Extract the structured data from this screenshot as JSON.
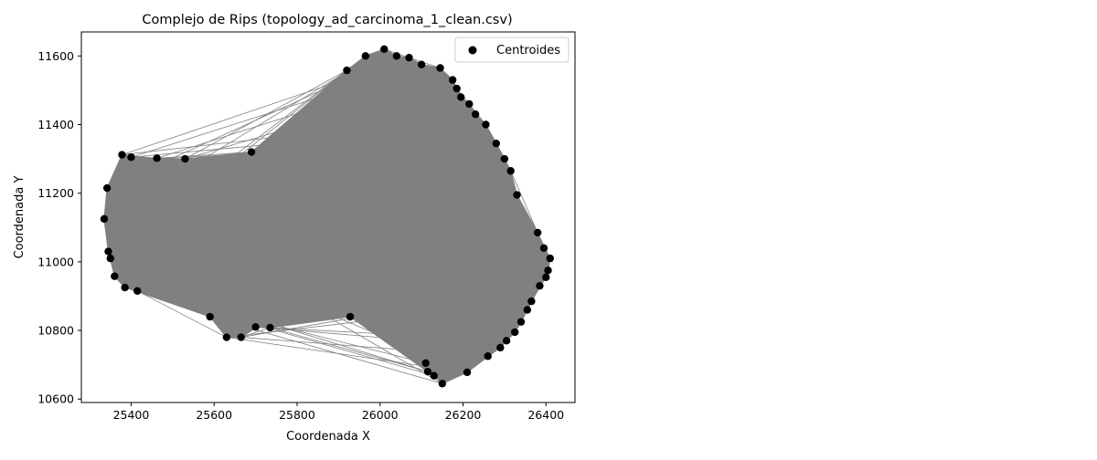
{
  "chart_data": {
    "type": "scatter",
    "title": "Complejo de Rips (topology_ad_carcinoma_1_clean.csv)",
    "xlabel": "Coordenada X",
    "ylabel": "Coordenada Y",
    "xlim": [
      25280,
      26470
    ],
    "ylim": [
      10590,
      11670
    ],
    "xticks": [
      25400,
      25600,
      25800,
      26000,
      26200,
      26400
    ],
    "yticks": [
      10600,
      10800,
      11000,
      11200,
      11400,
      11600
    ],
    "grid": false,
    "legend": {
      "placement": "upper right",
      "entries": [
        {
          "label": "Centroides",
          "marker": "circle",
          "color": "#000000"
        }
      ]
    },
    "edge_color": "#808080",
    "fill_color": "#808080",
    "point_color": "#000000",
    "series": [
      {
        "name": "Centroides",
        "points": [
          [
            25335,
            11125
          ],
          [
            25342,
            11215
          ],
          [
            25345,
            11030
          ],
          [
            25350,
            11010
          ],
          [
            25360,
            10958
          ],
          [
            25378,
            11312
          ],
          [
            25385,
            10925
          ],
          [
            25400,
            11305
          ],
          [
            25415,
            10915
          ],
          [
            25462,
            11302
          ],
          [
            25530,
            11300
          ],
          [
            25590,
            10840
          ],
          [
            25630,
            10780
          ],
          [
            25665,
            10780
          ],
          [
            25690,
            11320
          ],
          [
            25700,
            10810
          ],
          [
            25735,
            10808
          ],
          [
            25920,
            11558
          ],
          [
            25928,
            10840
          ],
          [
            25965,
            11600
          ],
          [
            26010,
            11620
          ],
          [
            26040,
            11600
          ],
          [
            26070,
            11595
          ],
          [
            26100,
            11575
          ],
          [
            26110,
            10705
          ],
          [
            26115,
            10680
          ],
          [
            26130,
            10668
          ],
          [
            26145,
            11565
          ],
          [
            26150,
            10645
          ],
          [
            26175,
            11530
          ],
          [
            26185,
            11505
          ],
          [
            26195,
            11480
          ],
          [
            26210,
            10678
          ],
          [
            26215,
            11460
          ],
          [
            26230,
            11430
          ],
          [
            26255,
            11400
          ],
          [
            26260,
            10725
          ],
          [
            26280,
            11345
          ],
          [
            26290,
            10750
          ],
          [
            26300,
            11300
          ],
          [
            26305,
            10770
          ],
          [
            26315,
            11265
          ],
          [
            26325,
            10795
          ],
          [
            26330,
            11195
          ],
          [
            26340,
            10825
          ],
          [
            26355,
            10860
          ],
          [
            26365,
            10885
          ],
          [
            26380,
            11085
          ],
          [
            26385,
            10930
          ],
          [
            26395,
            11040
          ],
          [
            26400,
            10955
          ],
          [
            26405,
            10975
          ],
          [
            26410,
            11010
          ]
        ]
      }
    ]
  }
}
